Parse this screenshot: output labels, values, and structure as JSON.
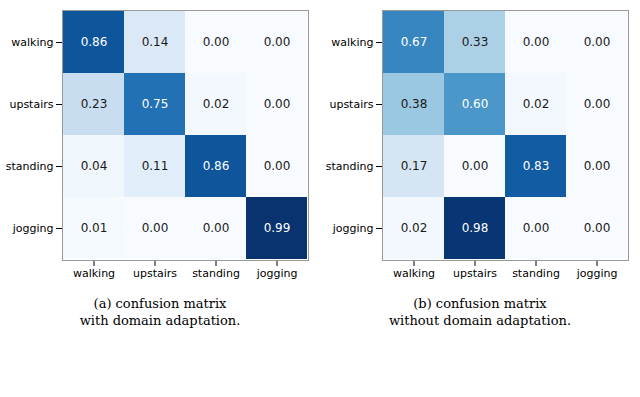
{
  "chart_data": [
    {
      "type": "heatmap",
      "title": "(a)  confusion matrix\nwith domain adaptation.",
      "categories": [
        "walking",
        "upstairs",
        "standing",
        "jogging"
      ],
      "values": [
        [
          0.86,
          0.14,
          0.0,
          0.0
        ],
        [
          0.23,
          0.75,
          0.02,
          0.0
        ],
        [
          0.04,
          0.11,
          0.86,
          0.0
        ],
        [
          0.01,
          0.0,
          0.0,
          0.99
        ]
      ],
      "value_labels": [
        [
          "0.86",
          "0.14",
          "0.00",
          "0.00"
        ],
        [
          "0.23",
          "0.75",
          "0.02",
          "0.00"
        ],
        [
          "0.04",
          "0.11",
          "0.86",
          "0.00"
        ],
        [
          "0.01",
          "0.00",
          "0.00",
          "0.99"
        ]
      ],
      "data_labels": true,
      "color": "Blues",
      "zlim": [
        0.0,
        1.0
      ]
    },
    {
      "type": "heatmap",
      "title": "(b)  confusion matrix\nwithout domain adaptation.",
      "categories": [
        "walking",
        "upstairs",
        "standing",
        "jogging"
      ],
      "values": [
        [
          0.67,
          0.33,
          0.0,
          0.0
        ],
        [
          0.38,
          0.6,
          0.02,
          0.0
        ],
        [
          0.17,
          0.0,
          0.83,
          0.0
        ],
        [
          0.02,
          0.98,
          0.0,
          0.0
        ]
      ],
      "value_labels": [
        [
          "0.67",
          "0.33",
          "0.00",
          "0.00"
        ],
        [
          "0.38",
          "0.60",
          "0.02",
          "0.00"
        ],
        [
          "0.17",
          "0.00",
          "0.83",
          "0.00"
        ],
        [
          "0.02",
          "0.98",
          "0.00",
          "0.00"
        ]
      ],
      "data_labels": true,
      "color": "Blues",
      "zlim": [
        0.0,
        1.0
      ]
    }
  ]
}
